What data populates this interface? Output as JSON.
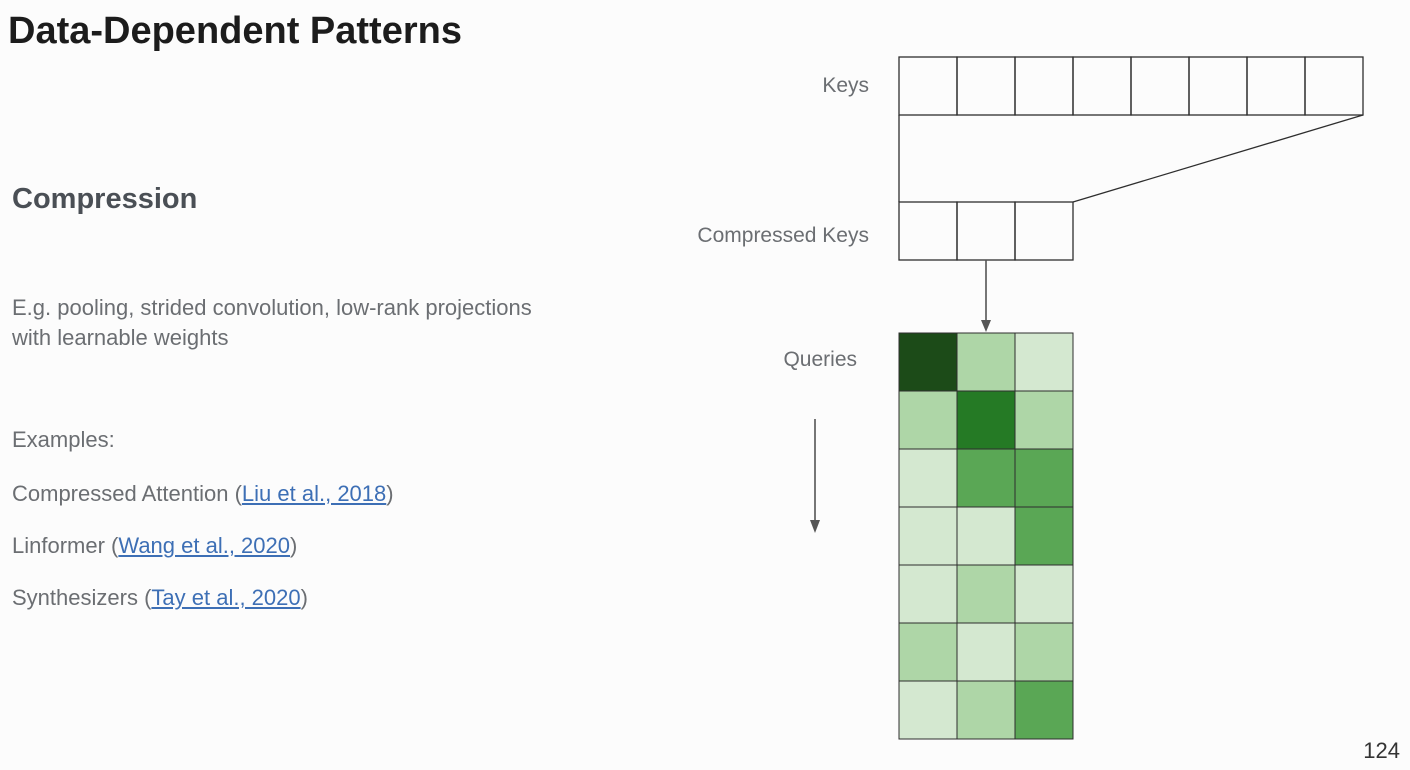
{
  "slide": {
    "title": "Data-Dependent Patterns",
    "subheading": "Compression",
    "description": "E.g. pooling, strided convolution, low-rank projections with learnable weights",
    "examples_label": "Examples:",
    "references": [
      {
        "name": "Compressed Attention",
        "link_text": "Liu et al., 2018"
      },
      {
        "name": "Linformer",
        "link_text": "Wang et al., 2020"
      },
      {
        "name": "Synthesizers",
        "link_text": "Tay et al., 2020"
      }
    ],
    "page_number": "124"
  },
  "diagram": {
    "keys_label": "Keys",
    "compressed_keys_label": "Compressed Keys",
    "queries_label": "Queries",
    "keys_count": 8,
    "compressed_keys_count": 3,
    "attention_levels": [
      [
        4,
        1,
        0
      ],
      [
        1,
        3,
        1
      ],
      [
        0,
        2,
        2
      ],
      [
        0,
        0,
        2
      ],
      [
        0,
        1,
        0
      ],
      [
        1,
        0,
        1
      ],
      [
        0,
        1,
        2
      ]
    ],
    "colors": {
      "level_0": "#d4e8d0",
      "level_1": "#aed6a7",
      "level_2": "#5aa755",
      "level_3": "#257a25",
      "level_4": "#1c4b18",
      "stroke": "#2e2e2e",
      "arrow": "#555555"
    }
  }
}
